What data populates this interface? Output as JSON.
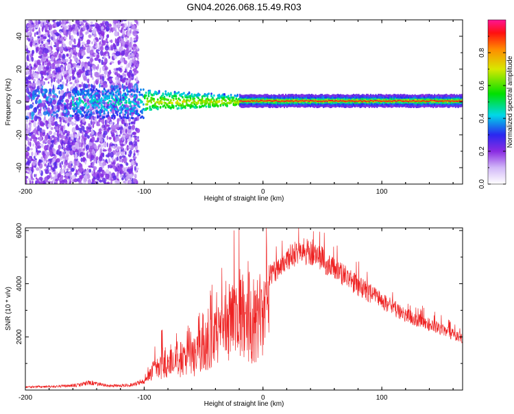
{
  "title": "GN04.2026.068.15.49.R03",
  "colors": {
    "snr_line": "#ee2222",
    "axis": "#000000"
  },
  "chart_data": [
    {
      "type": "heatmap",
      "xlabel": "Height of straight line (km)",
      "ylabel": "Frequency (Hz)",
      "xlim": [
        -200,
        168
      ],
      "ylim": [
        -50,
        50
      ],
      "xticks": [
        -200,
        -100,
        0,
        100
      ],
      "yticks": [
        -40,
        -20,
        0,
        20,
        40
      ],
      "colorbar": {
        "label": "Normalized spectral amplitude",
        "range": [
          0,
          1
        ],
        "ticks": [
          "0.0",
          "0.2",
          "0.4",
          "0.6",
          "0.8"
        ]
      }
    },
    {
      "type": "line",
      "xlabel": "Height of straight line (km)",
      "ylabel": "SNR (10 * v/v)",
      "xlim": [
        -200,
        168
      ],
      "ylim": [
        0,
        6100
      ],
      "xticks": [
        -200,
        -100,
        0,
        100
      ],
      "yticks": [
        2000,
        4000,
        6000
      ],
      "envelope_points": [
        [
          -200,
          150
        ],
        [
          -175,
          180
        ],
        [
          -155,
          250
        ],
        [
          -145,
          380
        ],
        [
          -130,
          200
        ],
        [
          -110,
          260
        ],
        [
          -98,
          500
        ],
        [
          -92,
          1200
        ],
        [
          -85,
          1600
        ],
        [
          -75,
          1900
        ],
        [
          -65,
          1800
        ],
        [
          -58,
          2000
        ],
        [
          -50,
          2500
        ],
        [
          -42,
          2900
        ],
        [
          -35,
          3400
        ],
        [
          -30,
          3800
        ],
        [
          -25,
          4500
        ],
        [
          -20,
          4800
        ],
        [
          -15,
          4200
        ],
        [
          -10,
          2800
        ],
        [
          -8,
          3600
        ],
        [
          -5,
          4300
        ],
        [
          0,
          4600
        ],
        [
          10,
          4900
        ],
        [
          20,
          5400
        ],
        [
          30,
          5700
        ],
        [
          40,
          5750
        ],
        [
          50,
          5400
        ],
        [
          60,
          5000
        ],
        [
          70,
          4700
        ],
        [
          80,
          4300
        ],
        [
          90,
          4000
        ],
        [
          100,
          3700
        ],
        [
          110,
          3400
        ],
        [
          120,
          3100
        ],
        [
          130,
          2900
        ],
        [
          140,
          2700
        ],
        [
          150,
          2500
        ],
        [
          160,
          2300
        ],
        [
          168,
          2150
        ]
      ]
    }
  ]
}
